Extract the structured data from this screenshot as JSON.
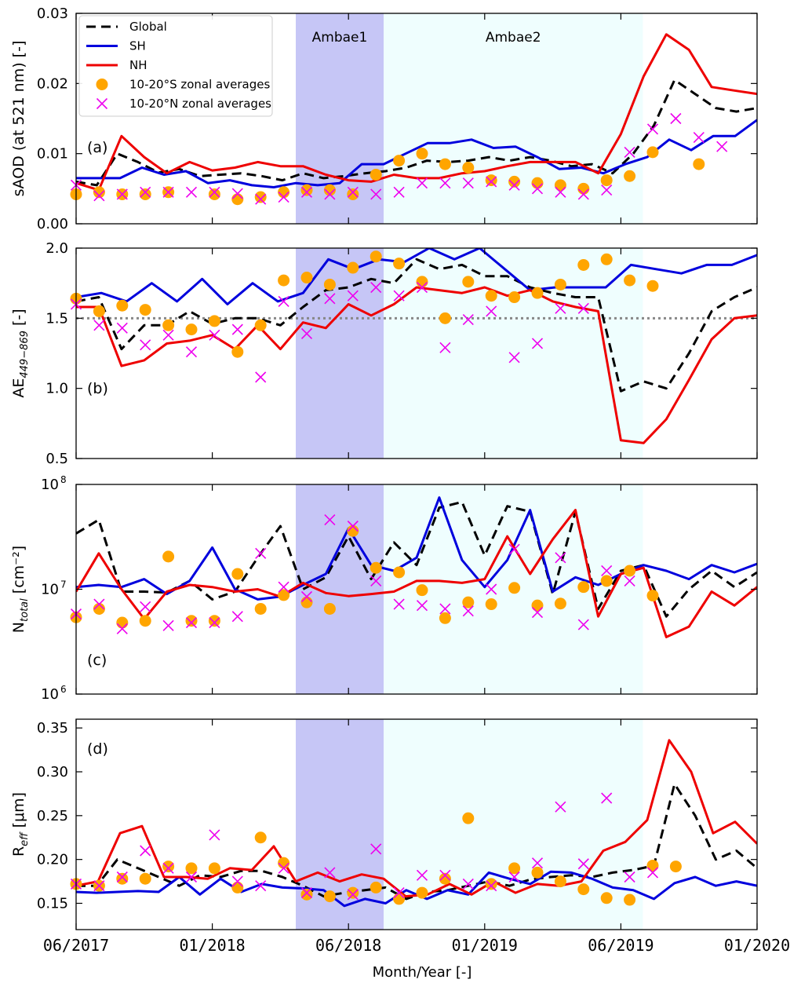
{
  "x_labels": [
    "06/2017",
    "01/2018",
    "06/2018",
    "01/2019",
    "06/2019",
    "01/2020"
  ],
  "xlabel": "Month/Year [-]",
  "events": [
    {
      "label": "Ambae1",
      "start": 10,
      "end": 14,
      "color": "#c6c6f6"
    },
    {
      "label": "Ambae2",
      "start": 14,
      "end": 25.8,
      "color": "#effefe"
    }
  ],
  "legend": [
    {
      "key": "global",
      "label": "Global"
    },
    {
      "key": "sh",
      "label": "SH"
    },
    {
      "key": "nh",
      "label": "NH"
    },
    {
      "key": "s_zonal",
      "label": "10-20°S zonal averages"
    },
    {
      "key": "n_zonal",
      "label": "10-20°N zonal averages"
    }
  ],
  "colors": {
    "global": "#000000",
    "sh": "#0000dd",
    "nh": "#ee0000",
    "s_zonal": "#ffa500",
    "n_zonal": "#ee00ee",
    "ref_line": "#888888"
  },
  "chart_data": [
    {
      "type": "line",
      "panel": "(a)",
      "ylabel": "sAOD (at 521 nm) [-]",
      "ylim": [
        0,
        0.03
      ],
      "yscale": "linear",
      "yticks": [
        0,
        0.01,
        0.02,
        0.03
      ],
      "ytick_labels": [
        "0.00",
        "0.01",
        "0.02",
        "0.03"
      ],
      "series": {
        "global": [
          0.006,
          0.0055,
          0.01,
          0.0088,
          0.0073,
          0.0078,
          0.0068,
          0.007,
          0.0072,
          0.0068,
          0.0062,
          0.0072,
          0.0065,
          0.0068,
          0.0072,
          0.0075,
          0.008,
          0.009,
          0.0088,
          0.009,
          0.0095,
          0.009,
          0.0095,
          0.009,
          0.0082,
          0.0085,
          0.0072,
          0.01,
          0.014,
          0.0205,
          0.0185,
          0.0165,
          0.016,
          0.0165
        ],
        "sh": [
          0.0065,
          0.0065,
          0.0065,
          0.008,
          0.007,
          0.0075,
          0.0058,
          0.0062,
          0.0055,
          0.0052,
          0.0058,
          0.0055,
          0.0058,
          0.0085,
          0.0085,
          0.01,
          0.0115,
          0.0115,
          0.012,
          0.0108,
          0.011,
          0.0095,
          0.0078,
          0.008,
          0.0072,
          0.0085,
          0.0095,
          0.012,
          0.0105,
          0.0125,
          0.0125,
          0.0148
        ],
        "nh": [
          0.0058,
          0.0048,
          0.0125,
          0.0095,
          0.0072,
          0.0088,
          0.0076,
          0.008,
          0.0088,
          0.0082,
          0.0082,
          0.007,
          0.0062,
          0.006,
          0.007,
          0.0065,
          0.0065,
          0.0072,
          0.0075,
          0.0082,
          0.0088,
          0.0088,
          0.0088,
          0.0072,
          0.0128,
          0.021,
          0.027,
          0.0248,
          0.0195,
          0.019,
          0.0185
        ],
        "s_zonal": [
          0.0042,
          0.0045,
          0.0042,
          0.0042,
          0.0045,
          null,
          0.0042,
          0.0035,
          0.0038,
          0.0045,
          0.0048,
          0.0048,
          0.0042,
          0.007,
          0.009,
          0.01,
          0.0085,
          0.008,
          0.0062,
          0.006,
          0.0058,
          0.0055,
          0.005,
          0.0062,
          0.0068,
          0.0102,
          null,
          0.0085
        ],
        "n_zonal": [
          0.0055,
          0.004,
          0.0042,
          0.0045,
          0.0045,
          0.0045,
          0.0045,
          0.0043,
          0.0035,
          0.0038,
          0.0045,
          0.0042,
          0.0045,
          0.0042,
          0.0045,
          0.0058,
          0.0058,
          0.0058,
          0.006,
          0.0055,
          0.005,
          0.0045,
          0.0042,
          0.0048,
          0.0102,
          0.0135,
          0.015,
          0.0123,
          0.011
        ]
      }
    },
    {
      "type": "line",
      "panel": "(b)",
      "ylabel": "AE",
      "ylabel_sub": "449−869",
      "ylabel_unit": "[-]",
      "ylim": [
        0.5,
        2.0
      ],
      "yscale": "linear",
      "yticks": [
        0.5,
        1.0,
        1.5,
        2.0
      ],
      "ytick_labels": [
        "0.5",
        "1.0",
        "1.5",
        "2.0"
      ],
      "ref_line": 1.5,
      "series": {
        "global": [
          1.62,
          1.65,
          1.28,
          1.45,
          1.45,
          1.55,
          1.46,
          1.5,
          1.5,
          1.45,
          1.58,
          1.7,
          1.72,
          1.78,
          1.75,
          1.92,
          1.85,
          1.88,
          1.8,
          1.8,
          1.72,
          1.68,
          1.65,
          1.65,
          0.98,
          1.05,
          1.0,
          1.25,
          1.55,
          1.65,
          1.72
        ],
        "sh": [
          1.65,
          1.68,
          1.62,
          1.75,
          1.62,
          1.78,
          1.6,
          1.75,
          1.62,
          1.68,
          1.92,
          1.85,
          1.92,
          1.9,
          2.0,
          1.92,
          2.0,
          1.85,
          1.7,
          1.72,
          1.72,
          1.72,
          1.88,
          1.85,
          1.82,
          1.88,
          1.88,
          1.95
        ],
        "nh": [
          1.58,
          1.58,
          1.16,
          1.2,
          1.32,
          1.34,
          1.38,
          1.28,
          1.45,
          1.28,
          1.47,
          1.43,
          1.6,
          1.52,
          1.6,
          1.72,
          1.7,
          1.68,
          1.72,
          1.66,
          1.7,
          1.62,
          1.58,
          1.55,
          0.63,
          0.61,
          0.78,
          1.06,
          1.35,
          1.5,
          1.52
        ],
        "s_zonal": [
          1.64,
          1.55,
          1.59,
          1.56,
          1.45,
          1.42,
          1.48,
          1.26,
          1.45,
          1.77,
          1.79,
          1.74,
          1.86,
          1.94,
          1.89,
          1.76,
          1.5,
          1.76,
          1.66,
          1.65,
          1.68,
          1.74,
          1.88,
          1.92,
          1.77,
          1.73
        ],
        "n_zonal": [
          1.6,
          1.45,
          1.43,
          1.31,
          1.38,
          1.26,
          1.38,
          1.42,
          1.08,
          1.62,
          1.39,
          1.64,
          1.66,
          1.72,
          1.66,
          1.72,
          1.29,
          1.49,
          1.55,
          1.22,
          1.32,
          1.57,
          1.57
        ]
      }
    },
    {
      "type": "line",
      "panel": "(c)",
      "ylabel": "N",
      "ylabel_sub": "total",
      "ylabel_unit": "[cm⁻²]",
      "ylim": [
        1000000,
        100000000
      ],
      "yscale": "log",
      "yticks": [
        1000000,
        10000000,
        100000000
      ],
      "ytick_labels": [
        "10",
        "10",
        "10"
      ],
      "ytick_exps": [
        "6",
        "7",
        "8"
      ],
      "series": {
        "global": [
          34000000,
          46000000,
          9500000,
          9500000,
          9300000,
          12000000,
          8000000,
          9500000,
          20000000,
          40000000,
          10000000,
          13000000,
          32000000,
          12500000,
          28000000,
          17000000,
          60000000,
          68000000,
          21000000,
          62000000,
          55000000,
          9000000,
          55000000,
          6500000,
          15000000,
          17000000,
          5500000,
          10000000,
          15000000,
          10500000,
          14500000
        ],
        "sh": [
          10500000,
          11000000,
          10500000,
          12500000,
          9000000,
          12000000,
          25000000,
          10000000,
          8000000,
          8500000,
          11000000,
          14000000,
          38000000,
          17000000,
          15000000,
          20000000,
          75000000,
          19000000,
          10500000,
          19000000,
          57000000,
          9500000,
          13000000,
          11000000,
          14000000,
          17000000,
          15000000,
          12500000,
          17000000,
          14500000,
          17500000
        ],
        "nh": [
          9500000,
          22000000,
          10000000,
          5200000,
          9500000,
          11000000,
          10500000,
          9500000,
          10000000,
          8500000,
          11500000,
          9200000,
          8600000,
          9000000,
          9500000,
          12000000,
          12000000,
          11500000,
          12500000,
          32000000,
          14000000,
          30000000,
          57000000,
          5500000,
          14000000,
          16000000,
          3500000,
          4400000,
          9500000,
          7000000,
          10500000
        ],
        "s_zonal": [
          5400000,
          6500000,
          4800000,
          5000000,
          20500000,
          5000000,
          5000000,
          14000000,
          6500000,
          8800000,
          7500000,
          6500000,
          36000000,
          16000000,
          14500000,
          9800000,
          5300000,
          7500000,
          7200000,
          10300000,
          7000000,
          7300000,
          10500000,
          12000000,
          15000000,
          8700000
        ],
        "n_zonal": [
          5800000,
          7200000,
          4200000,
          6800000,
          4500000,
          4800000,
          4800000,
          5500000,
          22000000,
          10500000,
          8500000,
          46000000,
          40000000,
          12000000,
          7200000,
          7000000,
          6500000,
          6200000,
          10000000,
          24000000,
          6000000,
          20000000,
          4600000,
          15000000,
          12000000
        ]
      }
    },
    {
      "type": "line",
      "panel": "(d)",
      "ylabel": "R",
      "ylabel_sub": "eff",
      "ylabel_unit": "[μm]",
      "ylim": [
        0.12,
        0.36
      ],
      "yscale": "linear",
      "yticks": [
        0.15,
        0.2,
        0.25,
        0.3,
        0.35
      ],
      "ytick_labels": [
        "0.15",
        "0.20",
        "0.25",
        "0.30",
        "0.35"
      ],
      "series": {
        "global": [
          0.17,
          0.17,
          0.2,
          0.19,
          0.18,
          0.17,
          0.182,
          0.18,
          0.187,
          0.187,
          0.18,
          0.17,
          0.158,
          0.162,
          0.165,
          0.168,
          0.155,
          0.163,
          0.165,
          0.17,
          0.175,
          0.17,
          0.177,
          0.18,
          0.182,
          0.18,
          0.185,
          0.188,
          0.193,
          0.286,
          0.25,
          0.2,
          0.21,
          0.19
        ],
        "sh": [
          0.163,
          0.162,
          0.163,
          0.164,
          0.163,
          0.18,
          0.16,
          0.178,
          0.163,
          0.172,
          0.168,
          0.167,
          0.165,
          0.147,
          0.155,
          0.15,
          0.165,
          0.155,
          0.165,
          0.16,
          0.185,
          0.178,
          0.172,
          0.186,
          0.185,
          0.178,
          0.168,
          0.165,
          0.155,
          0.173,
          0.18,
          0.17,
          0.175,
          0.17
        ],
        "nh": [
          0.17,
          0.175,
          0.23,
          0.238,
          0.18,
          0.18,
          0.178,
          0.19,
          0.188,
          0.215,
          0.175,
          0.185,
          0.175,
          0.183,
          0.178,
          0.158,
          0.16,
          0.172,
          0.16,
          0.175,
          0.162,
          0.172,
          0.17,
          0.175,
          0.21,
          0.22,
          0.245,
          0.336,
          0.3,
          0.23,
          0.243,
          0.218
        ],
        "s_zonal": [
          0.172,
          0.17,
          0.178,
          0.178,
          0.192,
          0.19,
          0.19,
          0.168,
          0.225,
          0.196,
          0.16,
          0.158,
          0.162,
          0.168,
          0.155,
          0.162,
          0.178,
          0.247,
          0.172,
          0.19,
          0.185,
          0.175,
          0.166,
          0.156,
          0.154,
          0.193,
          0.192
        ],
        "n_zonal": [
          0.172,
          0.17,
          0.18,
          0.21,
          0.19,
          0.18,
          0.228,
          0.175,
          0.17,
          0.19,
          0.162,
          0.185,
          0.16,
          0.212,
          0.162,
          0.182,
          0.182,
          0.172,
          0.17,
          0.18,
          0.196,
          0.26,
          0.195,
          0.27,
          0.18,
          0.185
        ]
      }
    }
  ]
}
